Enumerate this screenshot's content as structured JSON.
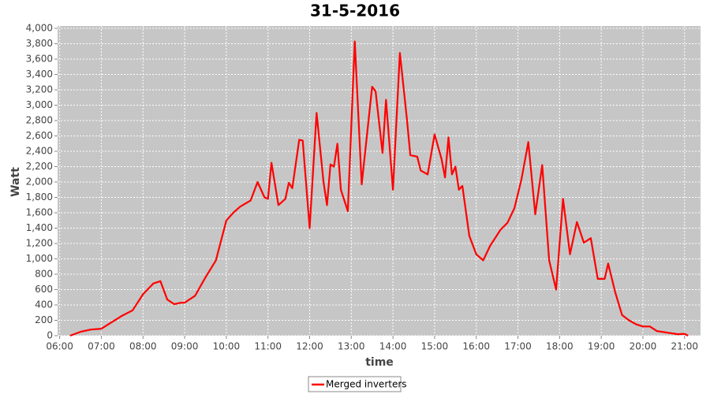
{
  "chart_data": {
    "type": "line",
    "title": "31-5-2016",
    "x_label": "time",
    "y_label": "Watt",
    "x": [
      "06:15",
      "06:30",
      "06:45",
      "07:00",
      "07:30",
      "07:45",
      "08:00",
      "08:15",
      "08:25",
      "08:35",
      "08:45",
      "08:55",
      "09:00",
      "09:15",
      "09:30",
      "09:45",
      "10:00",
      "10:10",
      "10:20",
      "10:35",
      "10:45",
      "10:55",
      "11:00",
      "11:05",
      "11:15",
      "11:25",
      "11:30",
      "11:35",
      "11:45",
      "11:50",
      "12:00",
      "12:10",
      "12:20",
      "12:25",
      "12:30",
      "12:35",
      "12:40",
      "12:45",
      "12:55",
      "13:05",
      "13:15",
      "13:30",
      "13:35",
      "13:45",
      "13:50",
      "14:00",
      "14:10",
      "14:20",
      "14:25",
      "14:35",
      "14:40",
      "14:50",
      "15:00",
      "15:10",
      "15:15",
      "15:20",
      "15:25",
      "15:30",
      "15:35",
      "15:40",
      "15:50",
      "16:00",
      "16:10",
      "16:20",
      "16:35",
      "16:45",
      "16:55",
      "17:05",
      "17:15",
      "17:25",
      "17:35",
      "17:45",
      "17:55",
      "18:05",
      "18:15",
      "18:25",
      "18:35",
      "18:45",
      "18:55",
      "19:05",
      "19:10",
      "19:20",
      "19:30",
      "19:40",
      "19:50",
      "20:00",
      "20:10",
      "20:20",
      "20:35",
      "20:50",
      "21:00",
      "21:05"
    ],
    "series": [
      {
        "name": "Merged inverters",
        "color": "#ff0000",
        "values": [
          0,
          50,
          80,
          90,
          260,
          330,
          540,
          680,
          710,
          470,
          410,
          430,
          430,
          520,
          760,
          980,
          1500,
          1600,
          1680,
          1760,
          2000,
          1800,
          1780,
          2250,
          1700,
          1780,
          1990,
          1920,
          2550,
          2540,
          1400,
          2900,
          2000,
          1700,
          2230,
          2200,
          2500,
          1900,
          1620,
          3830,
          1970,
          3240,
          3180,
          2380,
          3070,
          1900,
          3680,
          2830,
          2350,
          2330,
          2150,
          2100,
          2620,
          2300,
          2060,
          2580,
          2100,
          2200,
          1900,
          1950,
          1300,
          1060,
          980,
          1170,
          1380,
          1470,
          1660,
          2030,
          2520,
          1580,
          2220,
          980,
          600,
          1780,
          1060,
          1480,
          1210,
          1270,
          740,
          740,
          940,
          570,
          270,
          200,
          150,
          120,
          120,
          60,
          40,
          20,
          25,
          0
        ]
      }
    ],
    "xlim": [
      "05:57",
      "21:23"
    ],
    "xticks": [
      "06:00",
      "07:00",
      "08:00",
      "09:00",
      "10:00",
      "11:00",
      "12:00",
      "13:00",
      "14:00",
      "15:00",
      "16:00",
      "17:00",
      "18:00",
      "19:00",
      "20:00",
      "21:00"
    ],
    "ylim": [
      0,
      4000
    ],
    "yticks": [
      0,
      200,
      400,
      600,
      800,
      {
        "value": 1000,
        "label": "1,000"
      },
      {
        "value": 1200,
        "label": "1,200"
      },
      {
        "value": 1400,
        "label": "1,400"
      },
      {
        "value": 1600,
        "label": "1,600"
      },
      {
        "value": 1800,
        "label": "1,800"
      },
      {
        "value": 2000,
        "label": "2,000"
      },
      {
        "value": 2200,
        "label": "2,200"
      },
      {
        "value": 2400,
        "label": "2,400"
      },
      {
        "value": 2600,
        "label": "2,600"
      },
      {
        "value": 2800,
        "label": "2,800"
      },
      {
        "value": 3000,
        "label": "3,000"
      },
      {
        "value": 3200,
        "label": "3,200"
      },
      {
        "value": 3400,
        "label": "3,400"
      },
      {
        "value": 3600,
        "label": "3,600"
      },
      {
        "value": 3800,
        "label": "3,800"
      },
      {
        "value": 4000,
        "label": "4,000"
      }
    ],
    "grid": true
  }
}
